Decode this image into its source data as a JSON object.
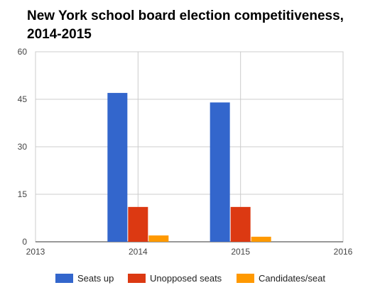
{
  "chart_data": {
    "type": "bar",
    "title": "New York school board election competitiveness, 2014-2015",
    "x": [
      2014,
      2015
    ],
    "xlim": [
      2013,
      2016
    ],
    "xticks": [
      "2013",
      "2014",
      "2015",
      "2016"
    ],
    "ylim": [
      0,
      60
    ],
    "yticks": [
      "0",
      "15",
      "30",
      "45",
      "60"
    ],
    "series": [
      {
        "name": "Seats up",
        "values": [
          47,
          44
        ],
        "color": "#3366cc"
      },
      {
        "name": "Unopposed seats",
        "values": [
          11,
          11
        ],
        "color": "#dc3912"
      },
      {
        "name": "Candidates/seat",
        "values": [
          2,
          1.6
        ],
        "color": "#ff9900"
      }
    ],
    "grid": true,
    "legend_position": "bottom"
  }
}
